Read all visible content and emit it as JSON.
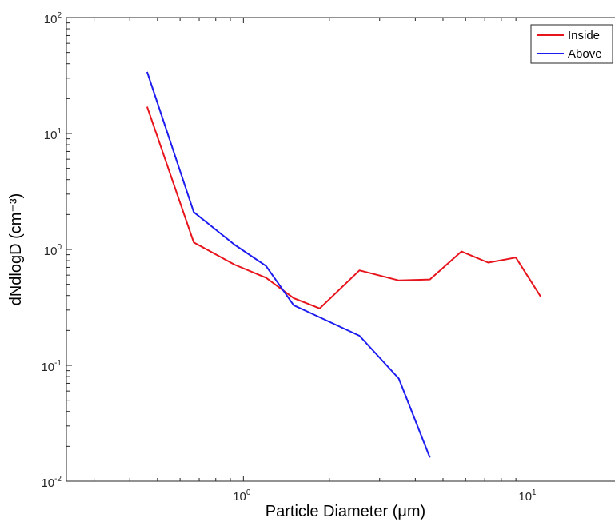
{
  "chart_data": {
    "type": "line",
    "xlabel": "Particle Diameter (μm)",
    "ylabel": "dNdlogD (cm⁻³)",
    "xscale": "log",
    "yscale": "log",
    "xlim": [
      0.24,
      20
    ],
    "ylim": [
      0.01,
      100
    ],
    "grid": false,
    "legend_position": "top-right",
    "x_ticks": [
      {
        "value": 1,
        "base": "10",
        "exp": "0"
      },
      {
        "value": 10,
        "base": "10",
        "exp": "1"
      }
    ],
    "y_ticks": [
      {
        "value": 0.01,
        "base": "10",
        "exp": "-2"
      },
      {
        "value": 0.1,
        "base": "10",
        "exp": "-1"
      },
      {
        "value": 1,
        "base": "10",
        "exp": "0"
      },
      {
        "value": 10,
        "base": "10",
        "exp": "1"
      },
      {
        "value": 100,
        "base": "10",
        "exp": "2"
      }
    ],
    "series": [
      {
        "name": "Inside",
        "color": "#e8141c",
        "x": [
          0.46,
          0.67,
          0.93,
          1.2,
          1.5,
          1.85,
          2.55,
          3.5,
          4.5,
          5.8,
          7.2,
          9.0,
          11.0
        ],
        "y": [
          17,
          1.15,
          0.74,
          0.57,
          0.38,
          0.31,
          0.66,
          0.54,
          0.55,
          0.96,
          0.77,
          0.85,
          0.39
        ]
      },
      {
        "name": "Above",
        "color": "#1c1cf0",
        "x": [
          0.46,
          0.67,
          0.93,
          1.2,
          1.5,
          2.55,
          3.5,
          4.5
        ],
        "y": [
          34,
          2.1,
          1.1,
          0.72,
          0.33,
          0.18,
          0.077,
          0.016
        ]
      }
    ]
  }
}
